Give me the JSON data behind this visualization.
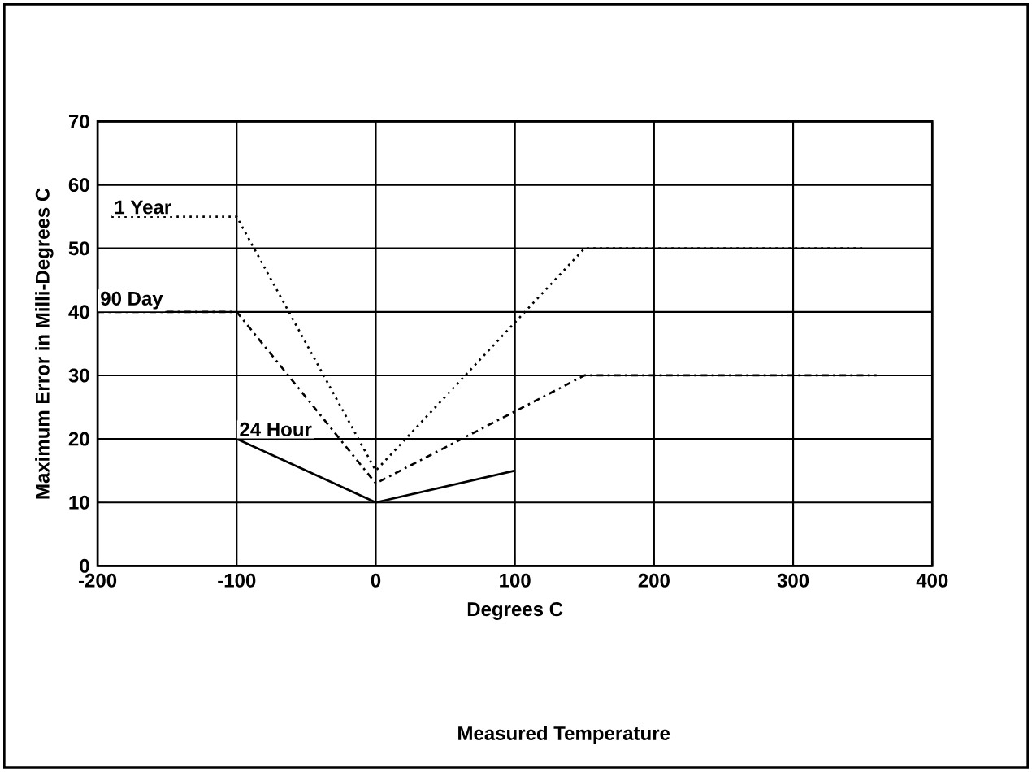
{
  "chart_data": {
    "type": "line",
    "title": "Measured Temperature",
    "xlabel": "Degrees C",
    "ylabel": "Maximum Error in Milli-Degrees C",
    "xlim": [
      -200,
      400
    ],
    "xticks": [
      -200,
      -100,
      0,
      100,
      200,
      300,
      400
    ],
    "ylim": [
      0,
      70
    ],
    "yticks": [
      0,
      10,
      20,
      30,
      40,
      50,
      60,
      70
    ],
    "grid": true,
    "legend": false,
    "series": [
      {
        "name": "1 Year",
        "color": "#000000",
        "line_style": "dotted",
        "x": [
          -190,
          -100,
          0,
          150,
          350
        ],
        "values": [
          55,
          55,
          15,
          50,
          50
        ]
      },
      {
        "name": "90 Day",
        "color": "#000000",
        "line_style": "dashdot",
        "x": [
          -200,
          -100,
          0,
          150,
          360
        ],
        "values": [
          40,
          40,
          13,
          30,
          30
        ]
      },
      {
        "name": "24 Hour",
        "color": "#000000",
        "line_style": "solid",
        "x": [
          -100,
          0,
          100
        ],
        "values": [
          20,
          10,
          15
        ]
      }
    ]
  }
}
